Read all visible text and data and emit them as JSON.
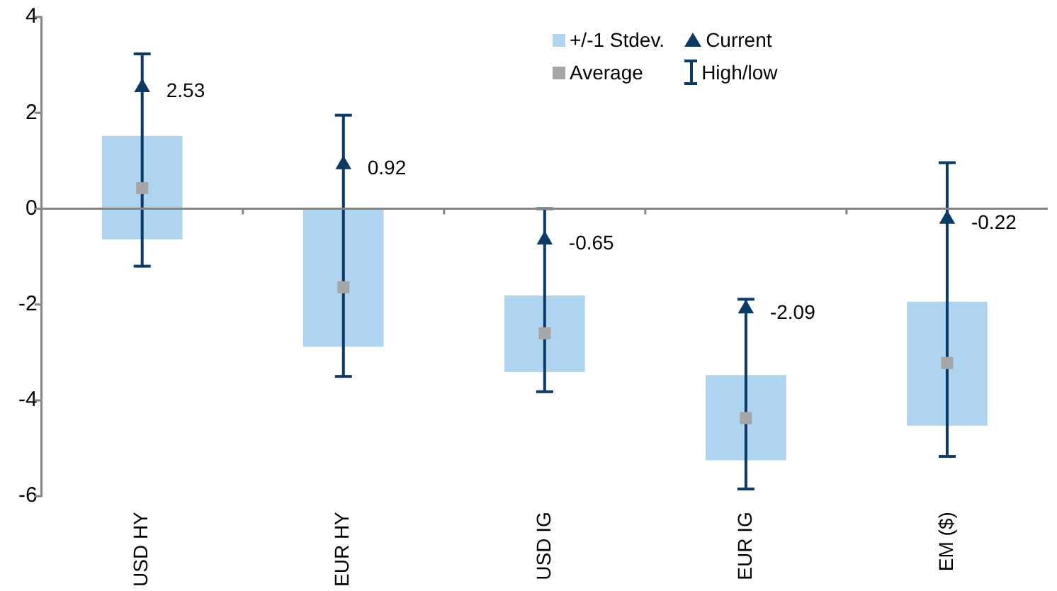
{
  "chart_data": {
    "type": "bar",
    "categories": [
      "USD HY",
      "EUR HY",
      "USD IG",
      "EUR IG",
      "EM ($)"
    ],
    "ylim": [
      -6,
      4
    ],
    "yticks": [
      -6,
      -4,
      -2,
      0,
      2,
      4
    ],
    "legend": "top",
    "grid": false,
    "ref_lines": [
      {
        "axis": "y",
        "value": 0,
        "color": "#868686"
      }
    ],
    "annotations": [
      "High/low"
    ],
    "series": [
      {
        "name": "+/-1 Stdev.",
        "color": "#aed4f0",
        "base": [
          -0.64,
          -2.88,
          -3.41,
          -5.25,
          -4.53
        ],
        "values": [
          2.16,
          2.88,
          1.6,
          1.78,
          2.59
        ]
      },
      {
        "name": "Current",
        "type": "scatter",
        "marker": "triangle",
        "color": "#0b3a66",
        "x": [
          "USD HY",
          "EUR HY",
          "USD IG",
          "EUR IG",
          "EM ($)"
        ],
        "values": [
          2.53,
          0.92,
          -0.65,
          -2.09,
          -0.22
        ],
        "value_labels": [
          "2.53",
          "0.92",
          "-0.65",
          "-2.09",
          "-0.22"
        ],
        "errors": [
          [
            -1.2,
            3.23
          ],
          [
            -3.5,
            1.95
          ],
          [
            -3.82,
            0
          ],
          [
            -5.85,
            -1.89
          ],
          [
            -5.17,
            0.96
          ]
        ]
      },
      {
        "name": "Average",
        "type": "scatter",
        "marker": "square",
        "color": "#a6a6a6",
        "x": [
          "USD HY",
          "EUR HY",
          "USD IG",
          "EUR IG",
          "EM ($)"
        ],
        "values": [
          0.43,
          -1.64,
          -2.6,
          -4.37,
          -3.22
        ]
      }
    ]
  }
}
